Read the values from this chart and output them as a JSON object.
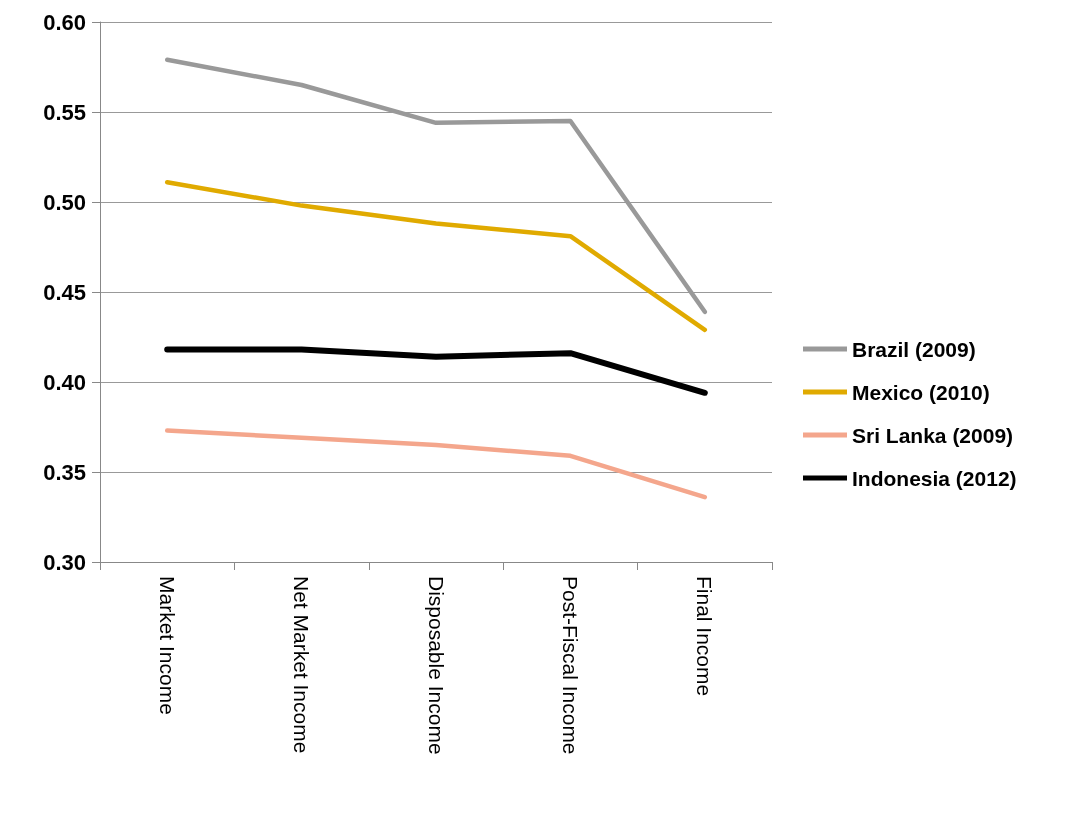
{
  "chart_data": {
    "type": "line",
    "categories": [
      "Market Income",
      "Net Market Income",
      "Disposable Income",
      "Post-Fiscal Income",
      "Final Income"
    ],
    "series": [
      {
        "name": "Brazil (2009)",
        "color": "#999999",
        "values": [
          0.579,
          0.565,
          0.544,
          0.545,
          0.439
        ]
      },
      {
        "name": "Mexico (2010)",
        "color": "#e0aa00",
        "values": [
          0.511,
          0.498,
          0.488,
          0.481,
          0.429
        ]
      },
      {
        "name": "Sri Lanka (2009)",
        "color": "#f4a68c",
        "values": [
          0.373,
          0.369,
          0.365,
          0.359,
          0.336
        ]
      },
      {
        "name": "Indonesia (2012)",
        "color": "#000000",
        "values": [
          0.418,
          0.418,
          0.414,
          0.416,
          0.394
        ]
      }
    ],
    "ylim": [
      0.3,
      0.6
    ],
    "yticks": [
      {
        "value": 0.3,
        "label": "0.30"
      },
      0.35,
      {
        "value": 0.4,
        "label": "0.40"
      },
      0.45,
      {
        "value": 0.5,
        "label": "0.50"
      },
      0.55,
      {
        "value": 0.6,
        "label": "0.60"
      }
    ],
    "grid": "y",
    "legend": "right",
    "marker": "none",
    "line_style": "solid"
  }
}
